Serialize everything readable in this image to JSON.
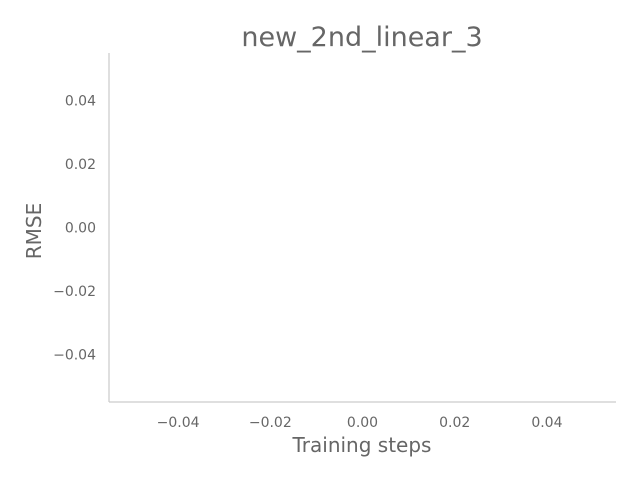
{
  "chart_data": {
    "type": "line",
    "title": "new_2nd_linear_3",
    "xlabel": "Training steps",
    "ylabel": "RMSE",
    "xlim": [
      -0.055,
      0.055
    ],
    "ylim": [
      -0.055,
      0.055
    ],
    "xticks": [
      -0.04,
      -0.02,
      0.0,
      0.02,
      0.04
    ],
    "xtick_labels": [
      "−0.04",
      "−0.02",
      "0.00",
      "0.02",
      "0.04"
    ],
    "yticks": [
      -0.04,
      -0.02,
      0.0,
      0.02,
      0.04
    ],
    "ytick_labels": [
      "−0.04",
      "−0.02",
      "0.00",
      "0.02",
      "0.04"
    ],
    "grid": false,
    "legend": null,
    "series": []
  }
}
